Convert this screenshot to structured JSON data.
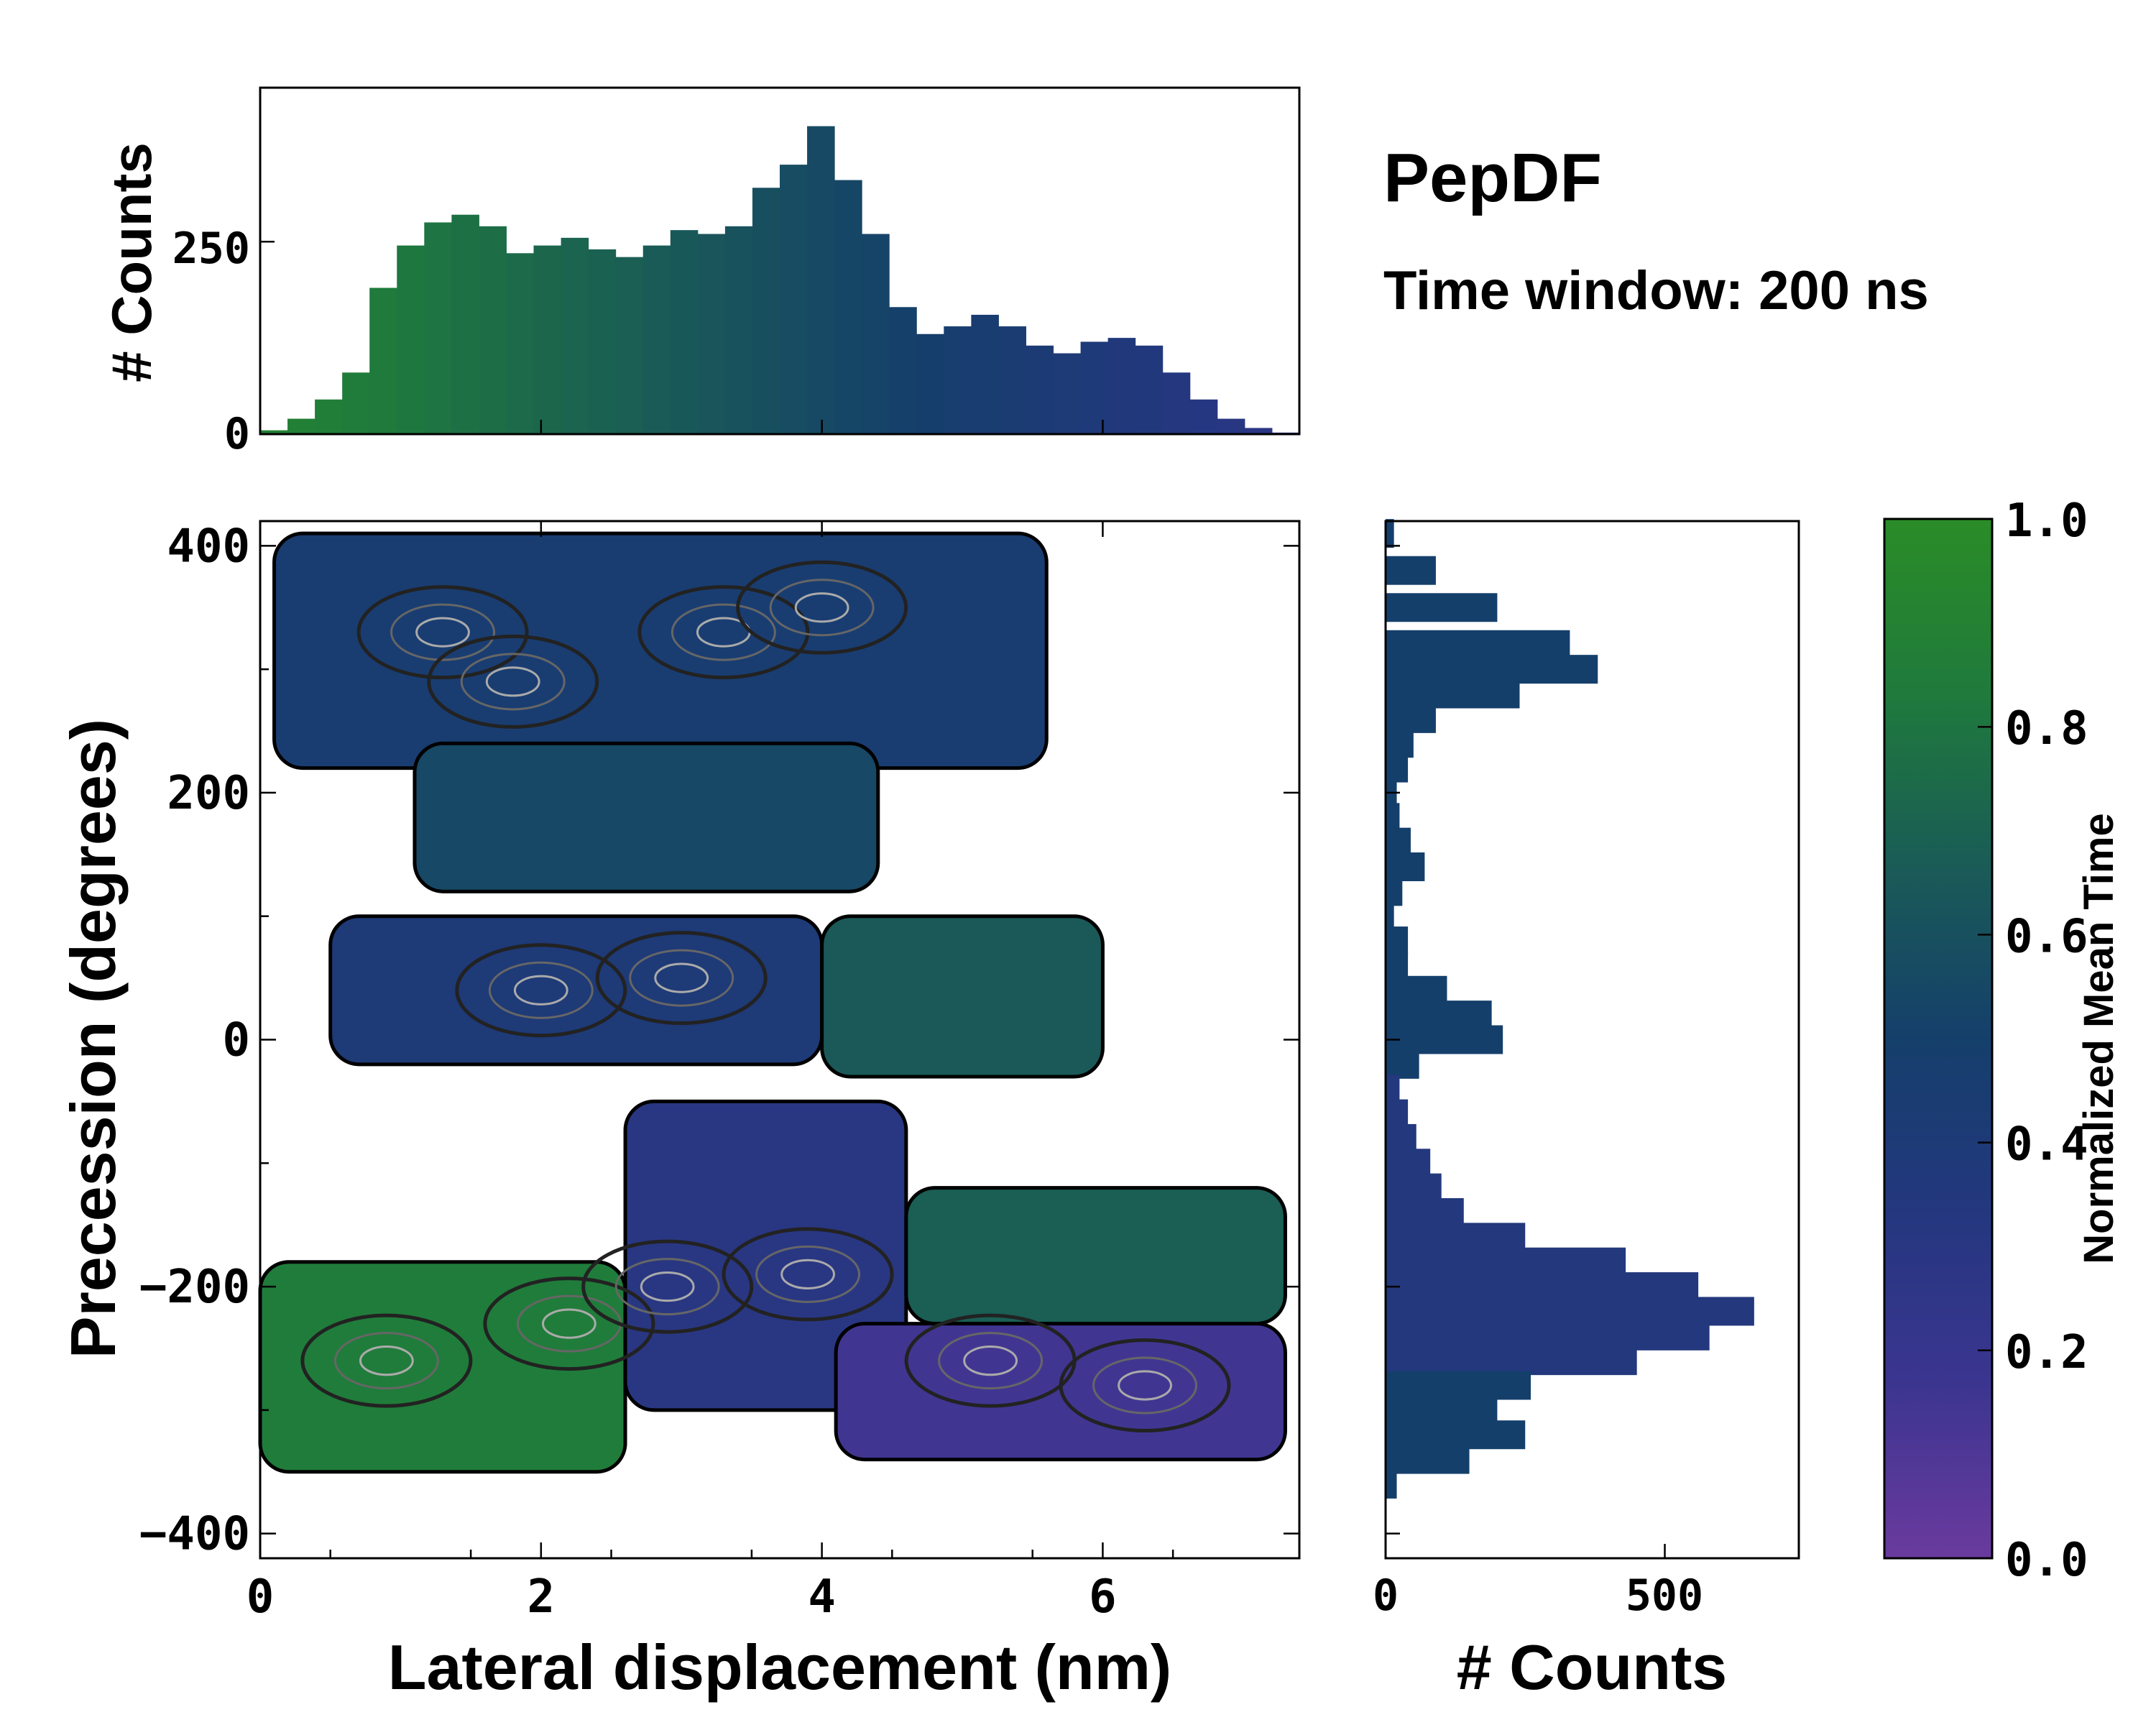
{
  "chart_data": {
    "type": "heatmap",
    "title": "PepDF",
    "subtitle": "Time window: 200 ns",
    "xlabel": "Lateral displacement (nm)",
    "ylabel": "Precession (degrees)",
    "xlim": [
      0,
      7.4
    ],
    "ylim": [
      -420,
      420
    ],
    "x_ticks": [
      "0",
      "2",
      "4",
      "6"
    ],
    "y_ticks": [
      "−400",
      "−200",
      "0",
      "200",
      "400"
    ],
    "colorbar": {
      "label": "Normalized Mean Time",
      "range": [
        0.0,
        1.0
      ],
      "ticks": [
        "0.0",
        "0.2",
        "0.4",
        "0.6",
        "0.8",
        "1.0"
      ],
      "colors": [
        "#6a3a9e",
        "#3b3590",
        "#24377f",
        "#153f6b",
        "#1a5c56",
        "#1f7a3c",
        "#2a8c27"
      ]
    },
    "heatmap_regions": [
      {
        "name": "upper band",
        "x_range": [
          0.1,
          5.6
        ],
        "y_range": [
          220,
          410
        ],
        "mean_time": 0.45
      },
      {
        "name": "upper connector",
        "x_range": [
          1.1,
          4.4
        ],
        "y_range": [
          120,
          240
        ],
        "mean_time": 0.55
      },
      {
        "name": "middle-left",
        "x_range": [
          0.5,
          4.0
        ],
        "y_range": [
          -20,
          100
        ],
        "mean_time": 0.4
      },
      {
        "name": "middle-right",
        "x_range": [
          4.0,
          6.0
        ],
        "y_range": [
          -30,
          100
        ],
        "mean_time": 0.65
      },
      {
        "name": "lower-left",
        "x_range": [
          0.0,
          2.6
        ],
        "y_range": [
          -350,
          -180
        ],
        "mean_time": 0.85
      },
      {
        "name": "lower-center",
        "x_range": [
          2.6,
          4.6
        ],
        "y_range": [
          -300,
          -50
        ],
        "mean_time": 0.3
      },
      {
        "name": "lower-right",
        "x_range": [
          4.6,
          7.3
        ],
        "y_range": [
          -120,
          -230
        ],
        "mean_time": 0.68
      },
      {
        "name": "lower-right purple",
        "x_range": [
          4.1,
          7.3
        ],
        "y_range": [
          -340,
          -230
        ],
        "mean_time": 0.15
      }
    ],
    "top_histogram": {
      "ylabel": "# Counts",
      "ylim": [
        0,
        450
      ],
      "y_ticks": [
        "0",
        "250"
      ],
      "x": [
        0.0,
        0.2,
        0.4,
        0.6,
        0.8,
        1.0,
        1.2,
        1.4,
        1.6,
        1.8,
        2.0,
        2.2,
        2.4,
        2.6,
        2.8,
        3.0,
        3.2,
        3.4,
        3.6,
        3.8,
        4.0,
        4.2,
        4.4,
        4.6,
        4.8,
        5.0,
        5.2,
        5.4,
        5.6,
        5.8,
        6.0,
        6.2,
        6.4,
        6.6,
        6.8,
        7.0,
        7.2,
        7.4
      ],
      "counts": [
        5,
        20,
        45,
        80,
        190,
        245,
        275,
        285,
        270,
        235,
        245,
        255,
        240,
        230,
        245,
        265,
        260,
        270,
        320,
        350,
        400,
        330,
        260,
        165,
        130,
        140,
        155,
        140,
        115,
        105,
        120,
        125,
        115,
        80,
        45,
        20,
        8,
        2
      ]
    },
    "right_histogram": {
      "xlabel": "# Counts",
      "xlim": [
        0,
        740
      ],
      "x_ticks": [
        "0",
        "500"
      ],
      "y": [
        410,
        380,
        350,
        320,
        300,
        280,
        260,
        240,
        220,
        200,
        180,
        160,
        140,
        120,
        100,
        80,
        60,
        40,
        20,
        0,
        -20,
        -40,
        -60,
        -80,
        -100,
        -120,
        -140,
        -160,
        -180,
        -200,
        -220,
        -240,
        -260,
        -280,
        -300,
        -320,
        -340,
        -360
      ],
      "counts": [
        15,
        90,
        200,
        330,
        380,
        240,
        90,
        50,
        40,
        20,
        25,
        45,
        70,
        30,
        15,
        40,
        40,
        110,
        190,
        210,
        60,
        25,
        40,
        55,
        80,
        100,
        140,
        250,
        430,
        560,
        660,
        580,
        450,
        260,
        200,
        250,
        150,
        20
      ]
    }
  }
}
